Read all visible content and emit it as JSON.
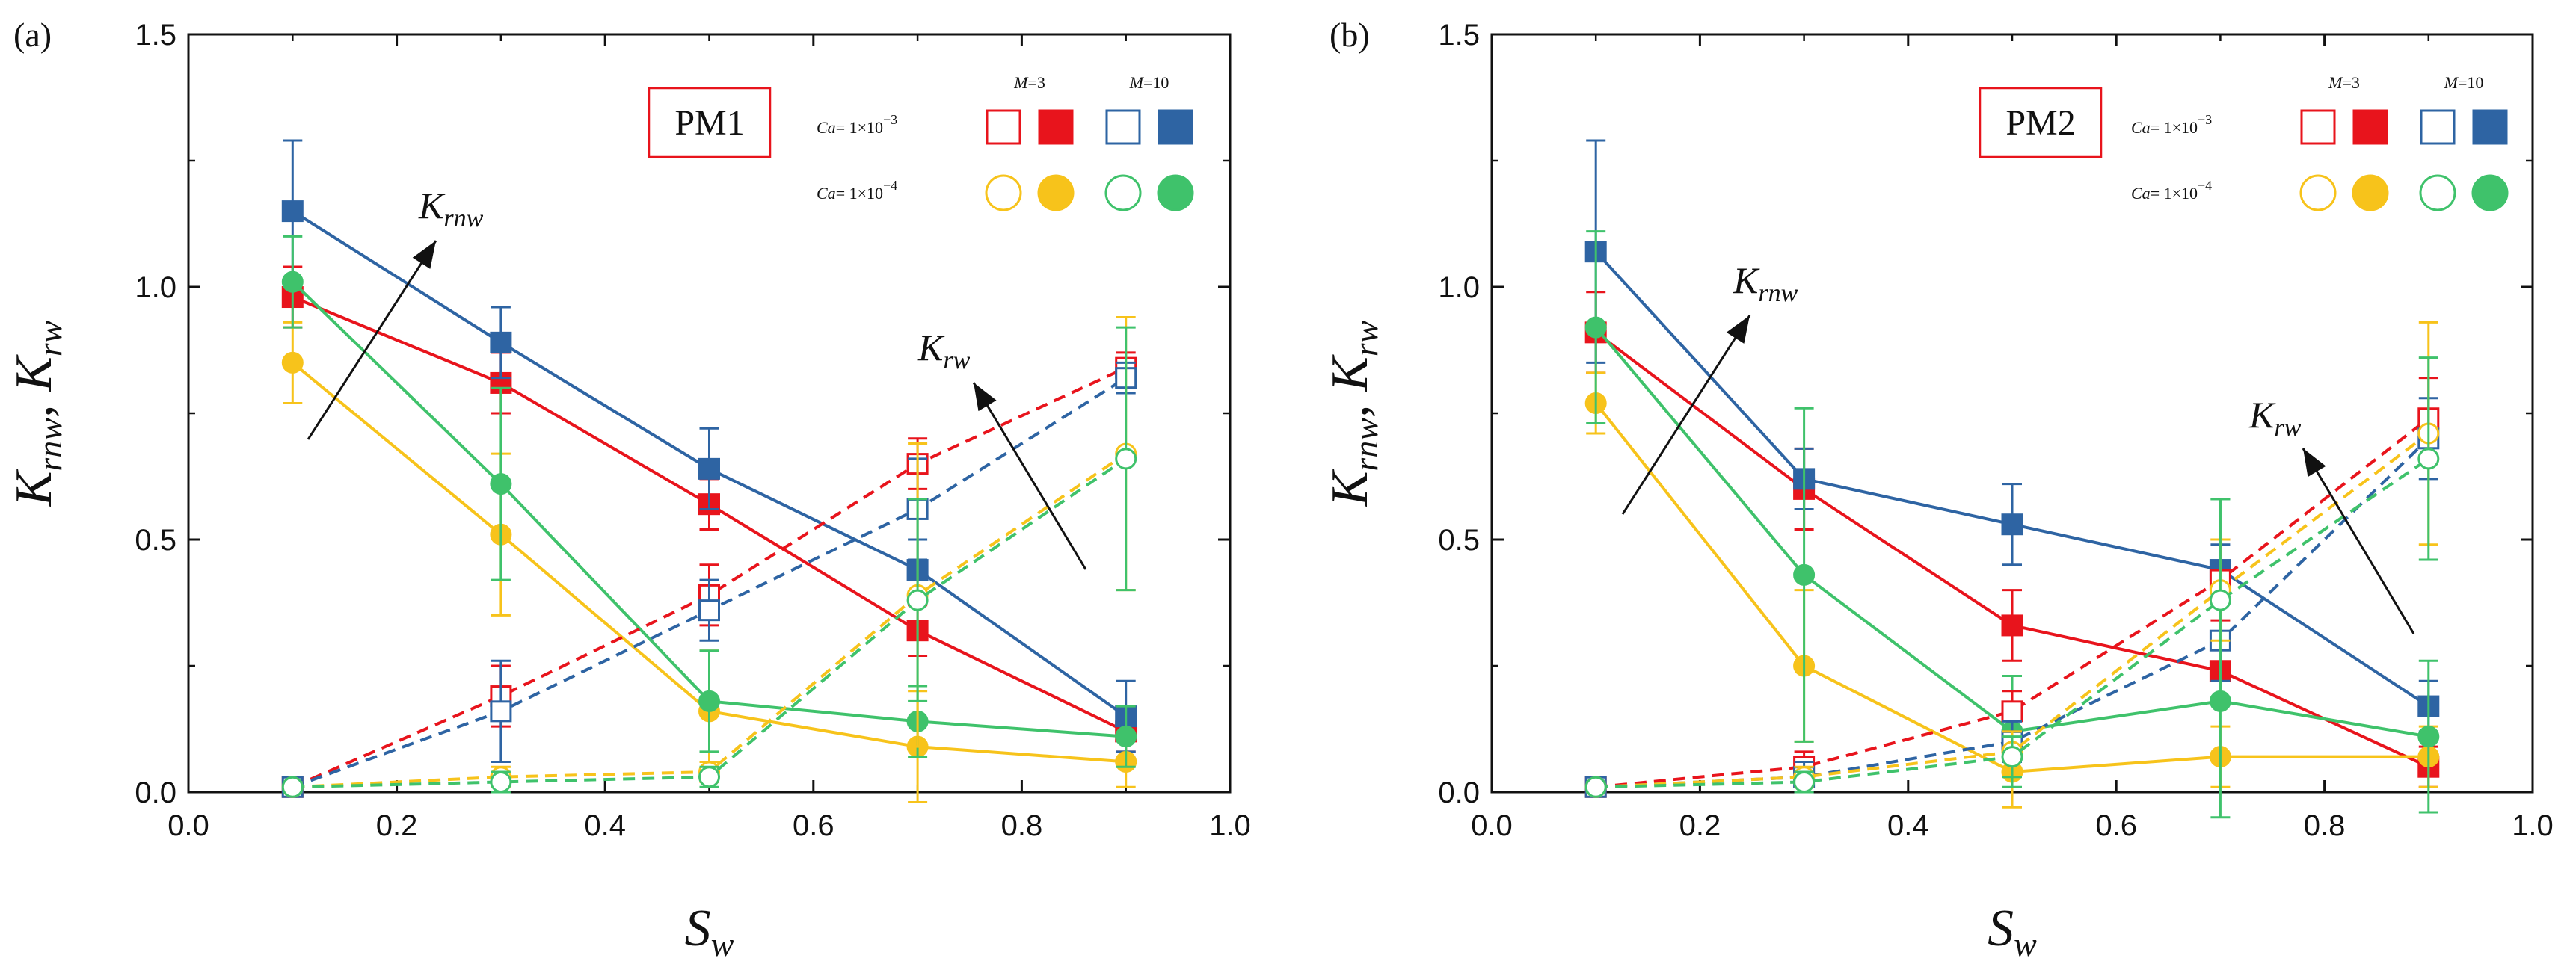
{
  "colors": {
    "m3_ca3": "#e8141c",
    "m10_ca3": "#2e64a3",
    "m3_ca4": "#f7c31b",
    "m10_ca4": "#3fc26b",
    "text": "#111111",
    "box_border": "#e8141c"
  },
  "chart_data": [
    {
      "type": "line",
      "panel_label": "(a)",
      "box_label": "PM1",
      "xlabel_main": "S",
      "xlabel_sub": "w",
      "ylabel_parts": [
        "K",
        "rnw",
        ", K",
        "rw"
      ],
      "xlim": [
        0.0,
        1.0
      ],
      "ylim": [
        0.0,
        1.5
      ],
      "xticks": [
        "0.0",
        "0.2",
        "0.4",
        "0.6",
        "0.8",
        "1.0"
      ],
      "yticks": [
        "0.0",
        "0.5",
        "1.0",
        "1.5"
      ],
      "annotations": [
        {
          "main": "K",
          "sub": "rnw",
          "arrow": "up-right"
        },
        {
          "main": "K",
          "sub": "rw",
          "arrow": "up-left"
        }
      ],
      "legend": {
        "col_headers": [
          {
            "ital": "M",
            "rest": "=3"
          },
          {
            "ital": "M",
            "rest": "=10"
          }
        ],
        "rows": [
          {
            "ital": "Ca",
            "rest": "= 1×10",
            "exp": "−3"
          },
          {
            "ital": "Ca",
            "rest": "= 1×10",
            "exp": "−4"
          }
        ]
      },
      "x": [
        0.1,
        0.3,
        0.5,
        0.7,
        0.9
      ],
      "series": [
        {
          "key": "knw_m3_ca3",
          "color_key": "m3_ca3",
          "marker": "square",
          "filled": true,
          "dash": false,
          "values": [
            0.98,
            0.81,
            0.57,
            0.32,
            0.12
          ],
          "errors": [
            0.06,
            0.06,
            0.05,
            0.05,
            0.04
          ]
        },
        {
          "key": "knw_m10_ca3",
          "color_key": "m10_ca3",
          "marker": "square",
          "filled": true,
          "dash": false,
          "values": [
            1.15,
            0.89,
            0.64,
            0.44,
            0.15
          ],
          "errors": [
            0.14,
            0.07,
            0.08,
            0.06,
            0.07
          ]
        },
        {
          "key": "knw_m3_ca4",
          "color_key": "m3_ca4",
          "marker": "circle",
          "filled": true,
          "dash": false,
          "values": [
            0.85,
            0.51,
            0.16,
            0.09,
            0.06
          ],
          "errors": [
            0.08,
            0.16,
            0.12,
            0.11,
            0.05
          ]
        },
        {
          "key": "knw_m10_ca4",
          "color_key": "m10_ca4",
          "marker": "circle",
          "filled": true,
          "dash": false,
          "values": [
            1.01,
            0.61,
            0.18,
            0.14,
            0.11
          ],
          "errors": [
            0.09,
            0.19,
            0.1,
            0.07,
            0.06
          ]
        },
        {
          "key": "kw_m3_ca3",
          "color_key": "m3_ca3",
          "marker": "square",
          "filled": false,
          "dash": true,
          "values": [
            0.01,
            0.19,
            0.39,
            0.65,
            0.84
          ],
          "errors": [
            0.01,
            0.06,
            0.06,
            0.05,
            0.03
          ]
        },
        {
          "key": "kw_m10_ca3",
          "color_key": "m10_ca3",
          "marker": "square",
          "filled": false,
          "dash": true,
          "values": [
            0.01,
            0.16,
            0.36,
            0.56,
            0.82
          ],
          "errors": [
            0.01,
            0.1,
            0.06,
            0.1,
            0.03
          ]
        },
        {
          "key": "kw_m3_ca4",
          "color_key": "m3_ca4",
          "marker": "circle",
          "filled": false,
          "dash": true,
          "values": [
            0.01,
            0.03,
            0.04,
            0.39,
            0.67
          ],
          "errors": [
            0.01,
            0.02,
            0.02,
            0.3,
            0.27
          ]
        },
        {
          "key": "kw_m10_ca4",
          "color_key": "m10_ca4",
          "marker": "circle",
          "filled": false,
          "dash": true,
          "values": [
            0.01,
            0.02,
            0.03,
            0.38,
            0.66
          ],
          "errors": [
            0.01,
            0.02,
            0.02,
            0.2,
            0.26
          ]
        }
      ]
    },
    {
      "type": "line",
      "panel_label": "(b)",
      "box_label": "PM2",
      "xlabel_main": "S",
      "xlabel_sub": "w",
      "ylabel_parts": [
        "K",
        "rnw",
        ", K",
        "rw"
      ],
      "xlim": [
        0.0,
        1.0
      ],
      "ylim": [
        0.0,
        1.5
      ],
      "xticks": [
        "0.0",
        "0.2",
        "0.4",
        "0.6",
        "0.8",
        "1.0"
      ],
      "yticks": [
        "0.0",
        "0.5",
        "1.0",
        "1.5"
      ],
      "annotations": [
        {
          "main": "K",
          "sub": "rnw",
          "arrow": "up-right"
        },
        {
          "main": "K",
          "sub": "rw",
          "arrow": "up-left"
        }
      ],
      "legend": {
        "col_headers": [
          {
            "ital": "M",
            "rest": "=3"
          },
          {
            "ital": "M",
            "rest": "=10"
          }
        ],
        "rows": [
          {
            "ital": "Ca",
            "rest": "= 1×10",
            "exp": "−3"
          },
          {
            "ital": "Ca",
            "rest": "= 1×10",
            "exp": "−4"
          }
        ]
      },
      "x": [
        0.1,
        0.3,
        0.5,
        0.7,
        0.9
      ],
      "series": [
        {
          "key": "knw_m3_ca3",
          "color_key": "m3_ca3",
          "marker": "square",
          "filled": true,
          "dash": false,
          "values": [
            0.91,
            0.6,
            0.33,
            0.24,
            0.05
          ],
          "errors": [
            0.08,
            0.08,
            0.07,
            0.06,
            0.04
          ]
        },
        {
          "key": "knw_m10_ca3",
          "color_key": "m10_ca3",
          "marker": "square",
          "filled": true,
          "dash": false,
          "values": [
            1.07,
            0.62,
            0.53,
            0.44,
            0.17
          ],
          "errors": [
            0.22,
            0.06,
            0.08,
            0.05,
            0.05
          ]
        },
        {
          "key": "knw_m3_ca4",
          "color_key": "m3_ca4",
          "marker": "circle",
          "filled": true,
          "dash": false,
          "values": [
            0.77,
            0.25,
            0.04,
            0.07,
            0.07
          ],
          "errors": [
            0.06,
            0.15,
            0.07,
            0.06,
            0.06
          ]
        },
        {
          "key": "knw_m10_ca4",
          "color_key": "m10_ca4",
          "marker": "circle",
          "filled": true,
          "dash": false,
          "values": [
            0.92,
            0.43,
            0.12,
            0.18,
            0.11
          ],
          "errors": [
            0.19,
            0.33,
            0.11,
            0.4,
            0.15
          ]
        },
        {
          "key": "kw_m3_ca3",
          "color_key": "m3_ca3",
          "marker": "square",
          "filled": false,
          "dash": true,
          "values": [
            0.01,
            0.05,
            0.16,
            0.42,
            0.74
          ],
          "errors": [
            0.01,
            0.03,
            0.04,
            0.08,
            0.08
          ]
        },
        {
          "key": "kw_m10_ca3",
          "color_key": "m10_ca3",
          "marker": "square",
          "filled": false,
          "dash": true,
          "values": [
            0.01,
            0.03,
            0.1,
            0.3,
            0.7
          ],
          "errors": [
            0.01,
            0.03,
            0.04,
            0.08,
            0.08
          ]
        },
        {
          "key": "kw_m3_ca4",
          "color_key": "m3_ca4",
          "marker": "circle",
          "filled": false,
          "dash": true,
          "values": [
            0.01,
            0.03,
            0.08,
            0.4,
            0.71
          ],
          "errors": [
            0.01,
            0.02,
            0.04,
            0.1,
            0.22
          ]
        },
        {
          "key": "kw_m10_ca4",
          "color_key": "m10_ca4",
          "marker": "circle",
          "filled": false,
          "dash": true,
          "values": [
            0.01,
            0.02,
            0.07,
            0.38,
            0.66
          ],
          "errors": [
            0.01,
            0.02,
            0.04,
            0.2,
            0.2
          ]
        }
      ]
    }
  ]
}
